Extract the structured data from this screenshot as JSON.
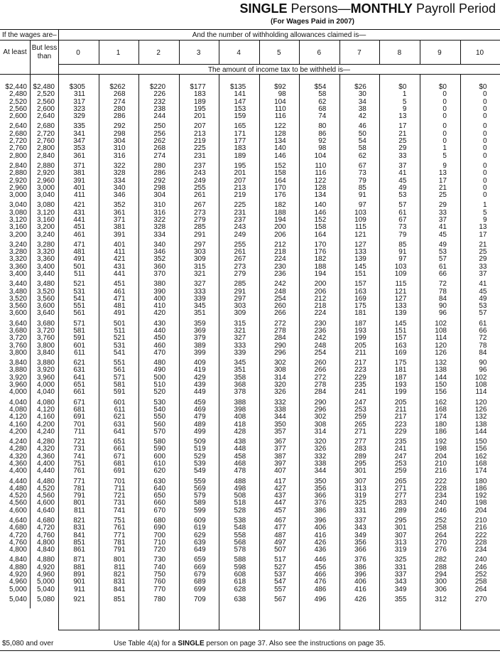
{
  "title": {
    "single": "SINGLE",
    "persons": " Persons—",
    "monthly": "MONTHLY",
    "period": " Payroll Period"
  },
  "subtitle": "(For Wages Paid in 2007)",
  "header": {
    "wages": "If the wages are–",
    "allowances": "And the number of withholding allowances claimed is—",
    "at_least": "At least",
    "but_less_than": "But less than",
    "columns": [
      "0",
      "1",
      "2",
      "3",
      "4",
      "5",
      "6",
      "7",
      "8",
      "9",
      "10"
    ],
    "amount": "The amount of income tax to be withheld is—"
  },
  "rows": [
    [
      "$2,440",
      "$2,480",
      "$305",
      "$262",
      "$220",
      "$177",
      "$135",
      "$92",
      "$54",
      "$26",
      "$0",
      "$0",
      "$0"
    ],
    [
      "2,480",
      "2,520",
      "311",
      "268",
      "226",
      "183",
      "141",
      "98",
      "58",
      "30",
      "1",
      "0",
      "0"
    ],
    [
      "2,520",
      "2,560",
      "317",
      "274",
      "232",
      "189",
      "147",
      "104",
      "62",
      "34",
      "5",
      "0",
      "0"
    ],
    [
      "2,560",
      "2,600",
      "323",
      "280",
      "238",
      "195",
      "153",
      "110",
      "68",
      "38",
      "9",
      "0",
      "0"
    ],
    [
      "2,600",
      "2,640",
      "329",
      "286",
      "244",
      "201",
      "159",
      "116",
      "74",
      "42",
      "13",
      "0",
      "0"
    ],
    [
      "2,640",
      "2,680",
      "335",
      "292",
      "250",
      "207",
      "165",
      "122",
      "80",
      "46",
      "17",
      "0",
      "0"
    ],
    [
      "2,680",
      "2,720",
      "341",
      "298",
      "256",
      "213",
      "171",
      "128",
      "86",
      "50",
      "21",
      "0",
      "0"
    ],
    [
      "2,720",
      "2,760",
      "347",
      "304",
      "262",
      "219",
      "177",
      "134",
      "92",
      "54",
      "25",
      "0",
      "0"
    ],
    [
      "2,760",
      "2,800",
      "353",
      "310",
      "268",
      "225",
      "183",
      "140",
      "98",
      "58",
      "29",
      "1",
      "0"
    ],
    [
      "2,800",
      "2,840",
      "361",
      "316",
      "274",
      "231",
      "189",
      "146",
      "104",
      "62",
      "33",
      "5",
      "0"
    ],
    [
      "2,840",
      "2,880",
      "371",
      "322",
      "280",
      "237",
      "195",
      "152",
      "110",
      "67",
      "37",
      "9",
      "0"
    ],
    [
      "2,880",
      "2,920",
      "381",
      "328",
      "286",
      "243",
      "201",
      "158",
      "116",
      "73",
      "41",
      "13",
      "0"
    ],
    [
      "2,920",
      "2,960",
      "391",
      "334",
      "292",
      "249",
      "207",
      "164",
      "122",
      "79",
      "45",
      "17",
      "0"
    ],
    [
      "2,960",
      "3,000",
      "401",
      "340",
      "298",
      "255",
      "213",
      "170",
      "128",
      "85",
      "49",
      "21",
      "0"
    ],
    [
      "3,000",
      "3,040",
      "411",
      "346",
      "304",
      "261",
      "219",
      "176",
      "134",
      "91",
      "53",
      "25",
      "0"
    ],
    [
      "3,040",
      "3,080",
      "421",
      "352",
      "310",
      "267",
      "225",
      "182",
      "140",
      "97",
      "57",
      "29",
      "1"
    ],
    [
      "3,080",
      "3,120",
      "431",
      "361",
      "316",
      "273",
      "231",
      "188",
      "146",
      "103",
      "61",
      "33",
      "5"
    ],
    [
      "3,120",
      "3,160",
      "441",
      "371",
      "322",
      "279",
      "237",
      "194",
      "152",
      "109",
      "67",
      "37",
      "9"
    ],
    [
      "3,160",
      "3,200",
      "451",
      "381",
      "328",
      "285",
      "243",
      "200",
      "158",
      "115",
      "73",
      "41",
      "13"
    ],
    [
      "3,200",
      "3,240",
      "461",
      "391",
      "334",
      "291",
      "249",
      "206",
      "164",
      "121",
      "79",
      "45",
      "17"
    ],
    [
      "3,240",
      "3,280",
      "471",
      "401",
      "340",
      "297",
      "255",
      "212",
      "170",
      "127",
      "85",
      "49",
      "21"
    ],
    [
      "3,280",
      "3,320",
      "481",
      "411",
      "346",
      "303",
      "261",
      "218",
      "176",
      "133",
      "91",
      "53",
      "25"
    ],
    [
      "3,320",
      "3,360",
      "491",
      "421",
      "352",
      "309",
      "267",
      "224",
      "182",
      "139",
      "97",
      "57",
      "29"
    ],
    [
      "3,360",
      "3,400",
      "501",
      "431",
      "360",
      "315",
      "273",
      "230",
      "188",
      "145",
      "103",
      "61",
      "33"
    ],
    [
      "3,400",
      "3,440",
      "511",
      "441",
      "370",
      "321",
      "279",
      "236",
      "194",
      "151",
      "109",
      "66",
      "37"
    ],
    [
      "3,440",
      "3,480",
      "521",
      "451",
      "380",
      "327",
      "285",
      "242",
      "200",
      "157",
      "115",
      "72",
      "41"
    ],
    [
      "3,480",
      "3,520",
      "531",
      "461",
      "390",
      "333",
      "291",
      "248",
      "206",
      "163",
      "121",
      "78",
      "45"
    ],
    [
      "3,520",
      "3,560",
      "541",
      "471",
      "400",
      "339",
      "297",
      "254",
      "212",
      "169",
      "127",
      "84",
      "49"
    ],
    [
      "3,560",
      "3,600",
      "551",
      "481",
      "410",
      "345",
      "303",
      "260",
      "218",
      "175",
      "133",
      "90",
      "53"
    ],
    [
      "3,600",
      "3,640",
      "561",
      "491",
      "420",
      "351",
      "309",
      "266",
      "224",
      "181",
      "139",
      "96",
      "57"
    ],
    [
      "3,640",
      "3,680",
      "571",
      "501",
      "430",
      "359",
      "315",
      "272",
      "230",
      "187",
      "145",
      "102",
      "61"
    ],
    [
      "3,680",
      "3,720",
      "581",
      "511",
      "440",
      "369",
      "321",
      "278",
      "236",
      "193",
      "151",
      "108",
      "66"
    ],
    [
      "3,720",
      "3,760",
      "591",
      "521",
      "450",
      "379",
      "327",
      "284",
      "242",
      "199",
      "157",
      "114",
      "72"
    ],
    [
      "3,760",
      "3,800",
      "601",
      "531",
      "460",
      "389",
      "333",
      "290",
      "248",
      "205",
      "163",
      "120",
      "78"
    ],
    [
      "3,800",
      "3,840",
      "611",
      "541",
      "470",
      "399",
      "339",
      "296",
      "254",
      "211",
      "169",
      "126",
      "84"
    ],
    [
      "3,840",
      "3,880",
      "621",
      "551",
      "480",
      "409",
      "345",
      "302",
      "260",
      "217",
      "175",
      "132",
      "90"
    ],
    [
      "3,880",
      "3,920",
      "631",
      "561",
      "490",
      "419",
      "351",
      "308",
      "266",
      "223",
      "181",
      "138",
      "96"
    ],
    [
      "3,920",
      "3,960",
      "641",
      "571",
      "500",
      "429",
      "358",
      "314",
      "272",
      "229",
      "187",
      "144",
      "102"
    ],
    [
      "3,960",
      "4,000",
      "651",
      "581",
      "510",
      "439",
      "368",
      "320",
      "278",
      "235",
      "193",
      "150",
      "108"
    ],
    [
      "4,000",
      "4,040",
      "661",
      "591",
      "520",
      "449",
      "378",
      "326",
      "284",
      "241",
      "199",
      "156",
      "114"
    ],
    [
      "4,040",
      "4,080",
      "671",
      "601",
      "530",
      "459",
      "388",
      "332",
      "290",
      "247",
      "205",
      "162",
      "120"
    ],
    [
      "4,080",
      "4,120",
      "681",
      "611",
      "540",
      "469",
      "398",
      "338",
      "296",
      "253",
      "211",
      "168",
      "126"
    ],
    [
      "4,120",
      "4,160",
      "691",
      "621",
      "550",
      "479",
      "408",
      "344",
      "302",
      "259",
      "217",
      "174",
      "132"
    ],
    [
      "4,160",
      "4,200",
      "701",
      "631",
      "560",
      "489",
      "418",
      "350",
      "308",
      "265",
      "223",
      "180",
      "138"
    ],
    [
      "4,200",
      "4,240",
      "711",
      "641",
      "570",
      "499",
      "428",
      "357",
      "314",
      "271",
      "229",
      "186",
      "144"
    ],
    [
      "4,240",
      "4,280",
      "721",
      "651",
      "580",
      "509",
      "438",
      "367",
      "320",
      "277",
      "235",
      "192",
      "150"
    ],
    [
      "4,280",
      "4,320",
      "731",
      "661",
      "590",
      "519",
      "448",
      "377",
      "326",
      "283",
      "241",
      "198",
      "156"
    ],
    [
      "4,320",
      "4,360",
      "741",
      "671",
      "600",
      "529",
      "458",
      "387",
      "332",
      "289",
      "247",
      "204",
      "162"
    ],
    [
      "4,360",
      "4,400",
      "751",
      "681",
      "610",
      "539",
      "468",
      "397",
      "338",
      "295",
      "253",
      "210",
      "168"
    ],
    [
      "4,400",
      "4,440",
      "761",
      "691",
      "620",
      "549",
      "478",
      "407",
      "344",
      "301",
      "259",
      "216",
      "174"
    ],
    [
      "4,440",
      "4,480",
      "771",
      "701",
      "630",
      "559",
      "488",
      "417",
      "350",
      "307",
      "265",
      "222",
      "180"
    ],
    [
      "4,480",
      "4,520",
      "781",
      "711",
      "640",
      "569",
      "498",
      "427",
      "356",
      "313",
      "271",
      "228",
      "186"
    ],
    [
      "4,520",
      "4,560",
      "791",
      "721",
      "650",
      "579",
      "508",
      "437",
      "366",
      "319",
      "277",
      "234",
      "192"
    ],
    [
      "4,560",
      "4,600",
      "801",
      "731",
      "660",
      "589",
      "518",
      "447",
      "376",
      "325",
      "283",
      "240",
      "198"
    ],
    [
      "4,600",
      "4,640",
      "811",
      "741",
      "670",
      "599",
      "528",
      "457",
      "386",
      "331",
      "289",
      "246",
      "204"
    ],
    [
      "4,640",
      "4,680",
      "821",
      "751",
      "680",
      "609",
      "538",
      "467",
      "396",
      "337",
      "295",
      "252",
      "210"
    ],
    [
      "4,680",
      "4,720",
      "831",
      "761",
      "690",
      "619",
      "548",
      "477",
      "406",
      "343",
      "301",
      "258",
      "216"
    ],
    [
      "4,720",
      "4,760",
      "841",
      "771",
      "700",
      "629",
      "558",
      "487",
      "416",
      "349",
      "307",
      "264",
      "222"
    ],
    [
      "4,760",
      "4,800",
      "851",
      "781",
      "710",
      "639",
      "568",
      "497",
      "426",
      "356",
      "313",
      "270",
      "228"
    ],
    [
      "4,800",
      "4,840",
      "861",
      "791",
      "720",
      "649",
      "578",
      "507",
      "436",
      "366",
      "319",
      "276",
      "234"
    ],
    [
      "4,840",
      "4,880",
      "871",
      "801",
      "730",
      "659",
      "588",
      "517",
      "446",
      "376",
      "325",
      "282",
      "240"
    ],
    [
      "4,880",
      "4,920",
      "881",
      "811",
      "740",
      "669",
      "598",
      "527",
      "456",
      "386",
      "331",
      "288",
      "246"
    ],
    [
      "4,920",
      "4,960",
      "891",
      "821",
      "750",
      "679",
      "608",
      "537",
      "466",
      "396",
      "337",
      "294",
      "252"
    ],
    [
      "4,960",
      "5,000",
      "901",
      "831",
      "760",
      "689",
      "618",
      "547",
      "476",
      "406",
      "343",
      "300",
      "258"
    ],
    [
      "5,000",
      "5,040",
      "911",
      "841",
      "770",
      "699",
      "628",
      "557",
      "486",
      "416",
      "349",
      "306",
      "264"
    ],
    [
      "5,040",
      "5,080",
      "921",
      "851",
      "780",
      "709",
      "638",
      "567",
      "496",
      "426",
      "355",
      "312",
      "270"
    ]
  ],
  "footer": {
    "over": "$5,080 and over",
    "note_pre": "Use Table 4(a) for a ",
    "note_bold": "SINGLE",
    "note_post": " person on page 37. Also see the instructions on page 35."
  }
}
